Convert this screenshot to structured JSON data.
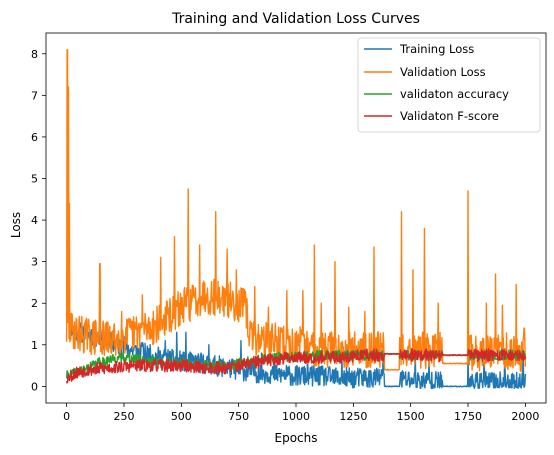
{
  "chart_data": {
    "type": "line",
    "title": "Training and Validation Loss Curves",
    "xlabel": "Epochs",
    "ylabel": "Loss",
    "xlim": [
      -90,
      2090
    ],
    "ylim": [
      -0.4,
      8.5
    ],
    "xticks": [
      0,
      250,
      500,
      750,
      1000,
      1250,
      1500,
      1750,
      2000
    ],
    "yticks": [
      0,
      1,
      2,
      3,
      4,
      5,
      6,
      7,
      8
    ],
    "grid": false,
    "legend_position": "top-right",
    "series": [
      {
        "name": "Training Loss",
        "color": "#1f77b4",
        "anchors": [
          [
            0,
            1.7
          ],
          [
            20,
            1.35
          ],
          [
            100,
            1.25
          ],
          [
            200,
            1.05
          ],
          [
            300,
            0.85
          ],
          [
            400,
            0.7
          ],
          [
            500,
            0.6
          ],
          [
            600,
            0.55
          ],
          [
            700,
            0.45
          ],
          [
            800,
            0.35
          ],
          [
            900,
            0.3
          ],
          [
            1000,
            0.25
          ],
          [
            1100,
            0.25
          ],
          [
            1200,
            0.2
          ],
          [
            1300,
            0.2
          ],
          [
            1400,
            0.2
          ],
          [
            1500,
            0.15
          ],
          [
            1600,
            0.12
          ],
          [
            1700,
            0.1
          ],
          [
            1800,
            0.1
          ],
          [
            1900,
            0.1
          ],
          [
            2000,
            0.1
          ]
        ],
        "spikes": [
          [
            5,
            4.4
          ],
          [
            120,
            1.3
          ],
          [
            160,
            1.5
          ],
          [
            250,
            1.2
          ],
          [
            330,
            1.05
          ],
          [
            430,
            1.1
          ],
          [
            480,
            1.3
          ],
          [
            520,
            1.3
          ],
          [
            620,
            1.0
          ],
          [
            760,
            1.1
          ],
          [
            850,
            0.8
          ],
          [
            1050,
            0.7
          ],
          [
            1200,
            0.8
          ],
          [
            1380,
            0.85
          ],
          [
            1520,
            0.8
          ],
          [
            1580,
            0.6
          ],
          [
            1750,
            0.7
          ],
          [
            1820,
            0.9
          ],
          [
            1910,
            0.9
          ],
          [
            1990,
            0.9
          ]
        ],
        "flats": [
          [
            1385,
            1450,
            0.0
          ],
          [
            1640,
            1750,
            0.0
          ]
        ],
        "noise": 0.25,
        "seed": 11
      },
      {
        "name": "Validation Loss",
        "color": "#ff7f0e",
        "anchors": [
          [
            0,
            1.3
          ],
          [
            20,
            1.35
          ],
          [
            100,
            1.2
          ],
          [
            200,
            1.1
          ],
          [
            300,
            1.3
          ],
          [
            400,
            1.5
          ],
          [
            500,
            1.9
          ],
          [
            600,
            2.2
          ],
          [
            700,
            2.1
          ],
          [
            780,
            1.9
          ],
          [
            800,
            1.2
          ],
          [
            900,
            1.1
          ],
          [
            1000,
            1.0
          ],
          [
            1100,
            0.9
          ],
          [
            1200,
            0.9
          ],
          [
            1300,
            0.9
          ],
          [
            1400,
            0.9
          ],
          [
            1500,
            0.9
          ],
          [
            1600,
            0.85
          ],
          [
            1700,
            0.85
          ],
          [
            1800,
            0.8
          ],
          [
            1900,
            0.85
          ],
          [
            2000,
            0.8
          ]
        ],
        "spikes": [
          [
            3,
            8.1
          ],
          [
            8,
            7.2
          ],
          [
            12,
            4.4
          ],
          [
            145,
            2.95
          ],
          [
            240,
            1.8
          ],
          [
            330,
            2.2
          ],
          [
            410,
            3.1
          ],
          [
            470,
            3.6
          ],
          [
            530,
            4.75
          ],
          [
            580,
            3.4
          ],
          [
            650,
            4.2
          ],
          [
            700,
            3.3
          ],
          [
            740,
            2.8
          ],
          [
            820,
            2.4
          ],
          [
            880,
            1.9
          ],
          [
            960,
            2.3
          ],
          [
            1030,
            2.3
          ],
          [
            1080,
            3.4
          ],
          [
            1110,
            2.0
          ],
          [
            1170,
            3.0
          ],
          [
            1230,
            1.9
          ],
          [
            1300,
            1.8
          ],
          [
            1340,
            3.35
          ],
          [
            1460,
            4.2
          ],
          [
            1510,
            2.8
          ],
          [
            1560,
            3.8
          ],
          [
            1620,
            2.0
          ],
          [
            1750,
            4.7
          ],
          [
            1830,
            2.0
          ],
          [
            1870,
            2.7
          ],
          [
            1900,
            1.95
          ],
          [
            1960,
            2.45
          ],
          [
            1995,
            1.4
          ]
        ],
        "flats": [
          [
            1385,
            1450,
            0.4
          ],
          [
            1640,
            1750,
            0.55
          ]
        ],
        "noise": 0.45,
        "seed": 29
      },
      {
        "name": "validaton accuracy",
        "color": "#2ca02c",
        "anchors": [
          [
            0,
            0.25
          ],
          [
            50,
            0.35
          ],
          [
            100,
            0.45
          ],
          [
            150,
            0.6
          ],
          [
            200,
            0.65
          ],
          [
            250,
            0.7
          ],
          [
            300,
            0.65
          ],
          [
            400,
            0.6
          ],
          [
            500,
            0.55
          ],
          [
            600,
            0.5
          ],
          [
            700,
            0.5
          ],
          [
            800,
            0.6
          ],
          [
            900,
            0.7
          ],
          [
            1000,
            0.7
          ],
          [
            1100,
            0.75
          ],
          [
            1200,
            0.75
          ],
          [
            1300,
            0.75
          ],
          [
            1400,
            0.75
          ],
          [
            1500,
            0.75
          ],
          [
            1600,
            0.75
          ],
          [
            1700,
            0.75
          ],
          [
            1800,
            0.75
          ],
          [
            1900,
            0.75
          ],
          [
            2000,
            0.75
          ]
        ],
        "spikes": [],
        "flats": [
          [
            1385,
            1450,
            0.78
          ],
          [
            1640,
            1750,
            0.75
          ]
        ],
        "noise": 0.12,
        "seed": 41
      },
      {
        "name": "Validaton F-score",
        "color": "#d62728",
        "anchors": [
          [
            0,
            0.2
          ],
          [
            50,
            0.35
          ],
          [
            100,
            0.4
          ],
          [
            200,
            0.45
          ],
          [
            300,
            0.5
          ],
          [
            400,
            0.5
          ],
          [
            500,
            0.5
          ],
          [
            600,
            0.45
          ],
          [
            700,
            0.45
          ],
          [
            800,
            0.55
          ],
          [
            900,
            0.65
          ],
          [
            1000,
            0.7
          ],
          [
            1100,
            0.7
          ],
          [
            1200,
            0.7
          ],
          [
            1300,
            0.75
          ],
          [
            1400,
            0.75
          ],
          [
            1500,
            0.75
          ],
          [
            1600,
            0.75
          ],
          [
            1700,
            0.75
          ],
          [
            1800,
            0.75
          ],
          [
            1900,
            0.75
          ],
          [
            2000,
            0.75
          ]
        ],
        "spikes": [],
        "flats": [
          [
            1385,
            1450,
            0.78
          ],
          [
            1640,
            1750,
            0.75
          ]
        ],
        "noise": 0.15,
        "seed": 53
      }
    ]
  }
}
